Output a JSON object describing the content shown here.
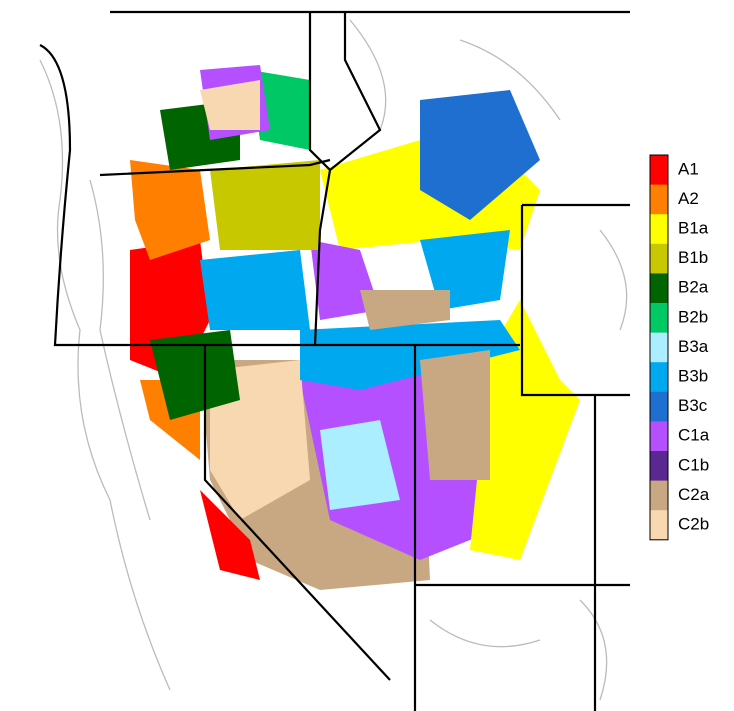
{
  "legend": {
    "items": [
      {
        "label": "A1",
        "color": "#ff0000"
      },
      {
        "label": "A2",
        "color": "#ff8000"
      },
      {
        "label": "B1a",
        "color": "#ffff00"
      },
      {
        "label": "B1b",
        "color": "#c8c800"
      },
      {
        "label": "B2a",
        "color": "#006400"
      },
      {
        "label": "B2b",
        "color": "#00c864"
      },
      {
        "label": "B3a",
        "color": "#aaeeff"
      },
      {
        "label": "B3b",
        "color": "#00a8f0"
      },
      {
        "label": "B3c",
        "color": "#1e6fd0"
      },
      {
        "label": "C1a",
        "color": "#b450ff"
      },
      {
        "label": "C1b",
        "color": "#5a2891"
      },
      {
        "label": "C2a",
        "color": "#c8a882"
      },
      {
        "label": "C2b",
        "color": "#f8d8b0"
      }
    ]
  }
}
